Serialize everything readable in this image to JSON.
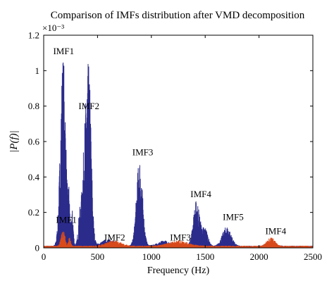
{
  "chart_data": {
    "type": "line",
    "title": "Comparison of IMFs distribution after VMD decomposition",
    "xlabel": "Frequency (Hz)",
    "ylabel": "|P(f)|",
    "exponent_label": "×10⁻³",
    "xlim": [
      0,
      2500
    ],
    "ylim": [
      0,
      1.2
    ],
    "x_ticks": [
      "0",
      "500",
      "1000",
      "1500",
      "2000",
      "2500"
    ],
    "y_ticks": [
      "0",
      "0.2",
      "0.4",
      "0.6",
      "0.8",
      "1",
      "1.2"
    ],
    "x_tick_values": [
      0,
      500,
      1000,
      1500,
      2000,
      2500
    ],
    "y_tick_values": [
      0,
      0.2,
      0.4,
      0.6,
      0.8,
      1.0,
      1.2
    ],
    "grid": false,
    "series": [
      {
        "color": "#2b2b8c",
        "peaks": [
          {
            "x": 180,
            "y": 1.08,
            "w": 25
          },
          {
            "x": 235,
            "y": 0.25,
            "w": 8
          },
          {
            "x": 265,
            "y": 0.2,
            "w": 10
          },
          {
            "x": 330,
            "y": 0.1,
            "w": 12
          },
          {
            "x": 395,
            "y": 0.72,
            "w": 32
          },
          {
            "x": 425,
            "y": 0.5,
            "w": 20
          },
          {
            "x": 600,
            "y": 0.04,
            "w": 60
          },
          {
            "x": 890,
            "y": 0.5,
            "w": 28
          },
          {
            "x": 1120,
            "y": 0.03,
            "w": 60
          },
          {
            "x": 1420,
            "y": 0.26,
            "w": 30
          },
          {
            "x": 1500,
            "y": 0.1,
            "w": 25
          },
          {
            "x": 1700,
            "y": 0.11,
            "w": 40
          },
          {
            "x": 2110,
            "y": 0.02,
            "w": 40
          }
        ],
        "baseline": 0.012
      },
      {
        "color": "#d84a1b",
        "peaks": [
          {
            "x": 180,
            "y": 0.09,
            "w": 18
          },
          {
            "x": 240,
            "y": 0.05,
            "w": 10
          },
          {
            "x": 650,
            "y": 0.03,
            "w": 70
          },
          {
            "x": 1250,
            "y": 0.03,
            "w": 90
          },
          {
            "x": 2110,
            "y": 0.05,
            "w": 35
          }
        ],
        "baseline": 0.012
      }
    ],
    "annotations": [
      {
        "text": "IMF1",
        "x": 185,
        "y": 1.08,
        "color": "#000000"
      },
      {
        "text": "IMF2",
        "x": 420,
        "y": 0.77,
        "color": "#000000"
      },
      {
        "text": "IMF3",
        "x": 920,
        "y": 0.51,
        "color": "#000000"
      },
      {
        "text": "IMF4",
        "x": 1460,
        "y": 0.275,
        "color": "#000000"
      },
      {
        "text": "IMF5",
        "x": 1760,
        "y": 0.145,
        "color": "#000000"
      },
      {
        "text": "IMF1",
        "x": 210,
        "y": 0.13,
        "color": "#000000"
      },
      {
        "text": "IMF2",
        "x": 660,
        "y": 0.03,
        "color": "#000000"
      },
      {
        "text": "IMF3",
        "x": 1270,
        "y": 0.03,
        "color": "#000000"
      },
      {
        "text": "IMF4",
        "x": 2155,
        "y": 0.065,
        "color": "#000000"
      }
    ]
  }
}
